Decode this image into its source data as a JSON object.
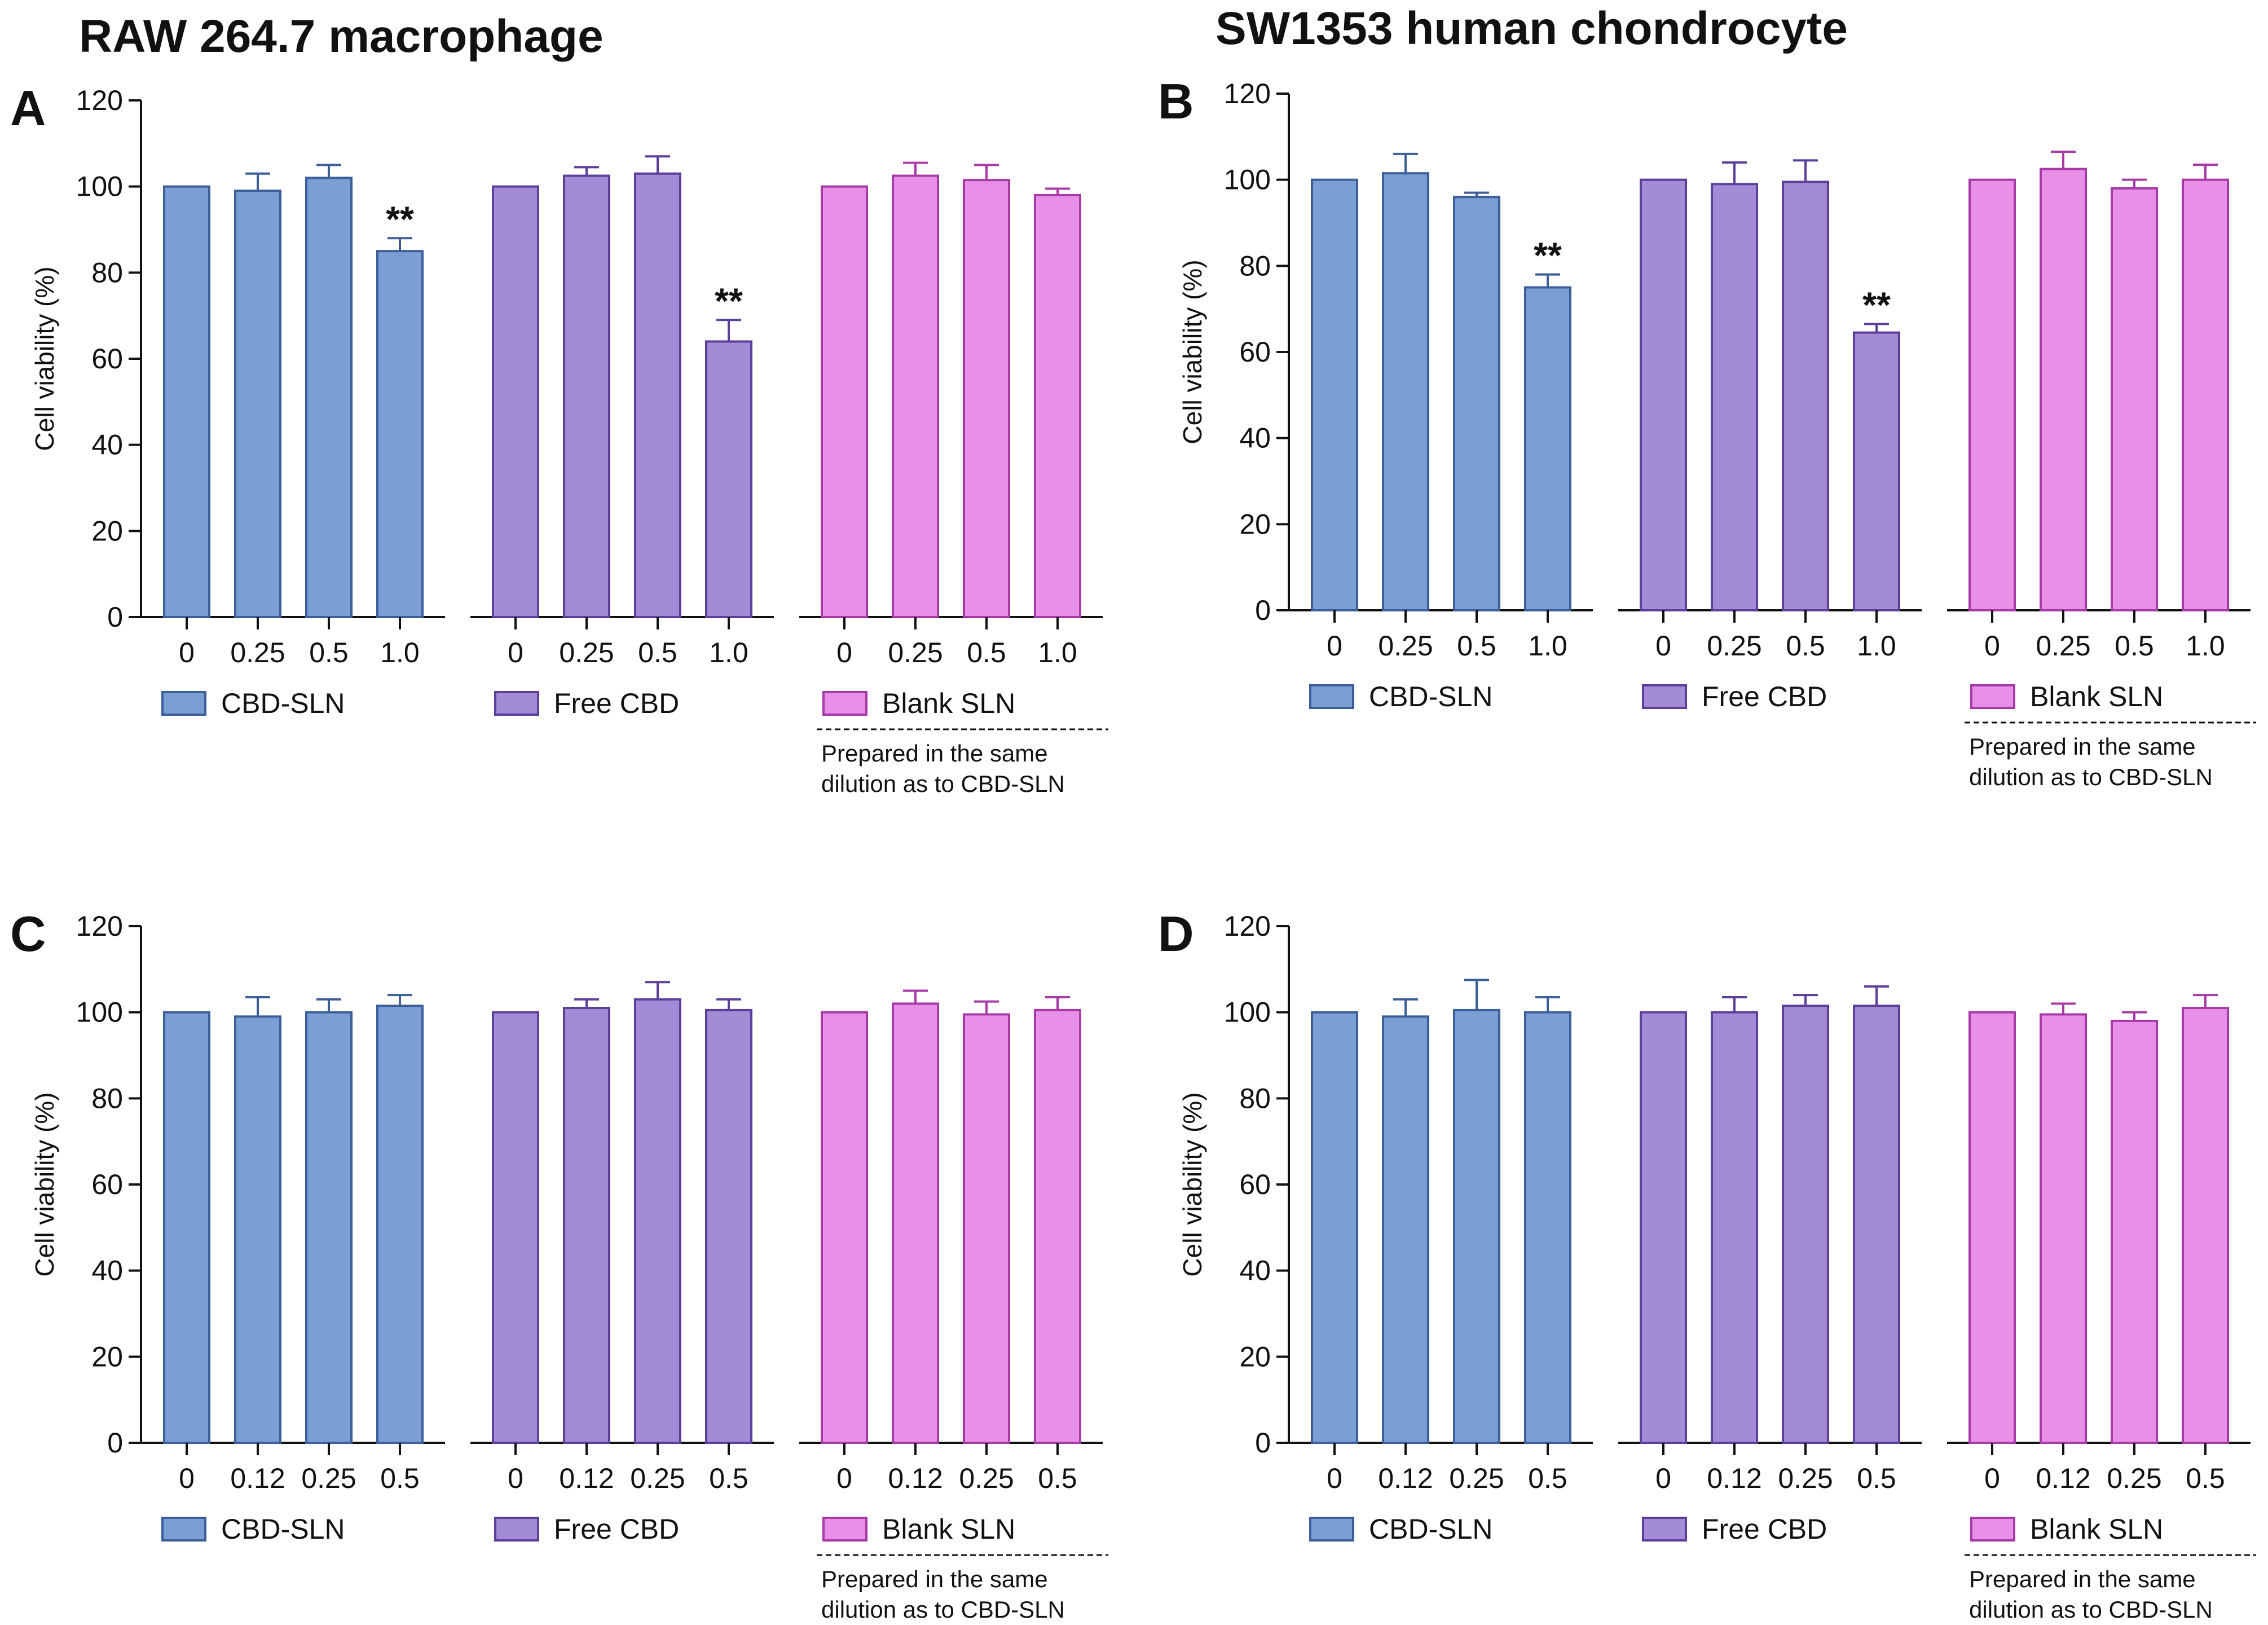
{
  "column_titles": [
    "RAW 264.7 macrophage",
    "SW1353 human chondrocyte"
  ],
  "colors": {
    "CBD-SLN": {
      "fill": "#7b9fd4",
      "stroke": "#3d5f99"
    },
    "Free CBD": {
      "fill": "#a38bd5",
      "stroke": "#5b3f9a"
    },
    "Blank SLN": {
      "fill": "#e890e8",
      "stroke": "#a83aa8"
    }
  },
  "chart_data": [
    {
      "panel": "A",
      "type": "bar",
      "ylabel": "Cell viability (%)",
      "ylim": [
        0,
        120
      ],
      "yticks": [
        0,
        20,
        40,
        60,
        80,
        100,
        120
      ],
      "legend": [
        "CBD-SLN",
        "Free CBD",
        "Blank SLN"
      ],
      "note": [
        "Prepared in the same",
        "dilution as to CBD-SLN"
      ],
      "groups": [
        {
          "name": "CBD-SLN",
          "categories": [
            "0",
            "0.25",
            "0.5",
            "1.0"
          ],
          "values": [
            100,
            99,
            102,
            85
          ],
          "errors": [
            0,
            4,
            3,
            3
          ],
          "sig": [
            "",
            "",
            "",
            "**"
          ]
        },
        {
          "name": "Free CBD",
          "categories": [
            "0",
            "0.25",
            "0.5",
            "1.0"
          ],
          "values": [
            100,
            102.5,
            103,
            64
          ],
          "errors": [
            0,
            2,
            4,
            5
          ],
          "sig": [
            "",
            "",
            "",
            "**"
          ]
        },
        {
          "name": "Blank SLN",
          "categories": [
            "0",
            "0.25",
            "0.5",
            "1.0"
          ],
          "values": [
            100,
            102.5,
            101.5,
            98
          ],
          "errors": [
            0,
            3,
            3.5,
            1.5
          ],
          "sig": [
            "",
            "",
            "",
            ""
          ]
        }
      ]
    },
    {
      "panel": "B",
      "type": "bar",
      "ylabel": "Cell viability (%)",
      "ylim": [
        0,
        120
      ],
      "yticks": [
        0,
        20,
        40,
        60,
        80,
        100,
        120
      ],
      "legend": [
        "CBD-SLN",
        "Free CBD",
        "Blank SLN"
      ],
      "note": [
        "Prepared in the same",
        "dilution as to CBD-SLN"
      ],
      "groups": [
        {
          "name": "CBD-SLN",
          "categories": [
            "0",
            "0.25",
            "0.5",
            "1.0"
          ],
          "values": [
            100,
            101.5,
            96,
            75
          ],
          "errors": [
            0,
            4.5,
            1,
            3
          ],
          "sig": [
            "",
            "",
            "",
            "**"
          ]
        },
        {
          "name": "Free CBD",
          "categories": [
            "0",
            "0.25",
            "0.5",
            "1.0"
          ],
          "values": [
            100,
            99,
            99.5,
            64.5
          ],
          "errors": [
            0,
            5,
            5,
            2
          ],
          "sig": [
            "",
            "",
            "",
            "**"
          ]
        },
        {
          "name": "Blank SLN",
          "categories": [
            "0",
            "0.25",
            "0.5",
            "1.0"
          ],
          "values": [
            100,
            102.5,
            98,
            100
          ],
          "errors": [
            0,
            4,
            2,
            3.5
          ],
          "sig": [
            "",
            "",
            "",
            ""
          ]
        }
      ]
    },
    {
      "panel": "C",
      "type": "bar",
      "ylabel": "Cell viability (%)",
      "ylim": [
        0,
        120
      ],
      "yticks": [
        0,
        20,
        40,
        60,
        80,
        100,
        120
      ],
      "legend": [
        "CBD-SLN",
        "Free CBD",
        "Blank SLN"
      ],
      "note": [
        "Prepared in the same",
        "dilution as to CBD-SLN"
      ],
      "groups": [
        {
          "name": "CBD-SLN",
          "categories": [
            "0",
            "0.12",
            "0.25",
            "0.5"
          ],
          "values": [
            100,
            99,
            100,
            101.5
          ],
          "errors": [
            0,
            4.5,
            3,
            2.5
          ],
          "sig": [
            "",
            "",
            "",
            ""
          ]
        },
        {
          "name": "Free CBD",
          "categories": [
            "0",
            "0.12",
            "0.25",
            "0.5"
          ],
          "values": [
            100,
            101,
            103,
            100.5
          ],
          "errors": [
            0,
            2,
            4,
            2.5
          ],
          "sig": [
            "",
            "",
            "",
            ""
          ]
        },
        {
          "name": "Blank SLN",
          "categories": [
            "0",
            "0.12",
            "0.25",
            "0.5"
          ],
          "values": [
            100,
            102,
            99.5,
            100.5
          ],
          "errors": [
            0,
            3,
            3,
            3
          ],
          "sig": [
            "",
            "",
            "",
            ""
          ]
        }
      ]
    },
    {
      "panel": "D",
      "type": "bar",
      "ylabel": "Cell viability (%)",
      "ylim": [
        0,
        120
      ],
      "yticks": [
        0,
        20,
        40,
        60,
        80,
        100,
        120
      ],
      "legend": [
        "CBD-SLN",
        "Free CBD",
        "Blank SLN"
      ],
      "note": [
        "Prepared in the same",
        "dilution as to CBD-SLN"
      ],
      "groups": [
        {
          "name": "CBD-SLN",
          "categories": [
            "0",
            "0.12",
            "0.25",
            "0.5"
          ],
          "values": [
            100,
            99,
            100.5,
            100
          ],
          "errors": [
            0,
            4,
            7,
            3.5
          ],
          "sig": [
            "",
            "",
            "",
            ""
          ]
        },
        {
          "name": "Free CBD",
          "categories": [
            "0",
            "0.12",
            "0.25",
            "0.5"
          ],
          "values": [
            100,
            100,
            101.5,
            101.5
          ],
          "errors": [
            0,
            3.5,
            2.5,
            4.5
          ],
          "sig": [
            "",
            "",
            "",
            ""
          ]
        },
        {
          "name": "Blank SLN",
          "categories": [
            "0",
            "0.12",
            "0.25",
            "0.5"
          ],
          "values": [
            100,
            99.5,
            98,
            101
          ],
          "errors": [
            0,
            2.5,
            2,
            3
          ],
          "sig": [
            "",
            "",
            "",
            ""
          ]
        }
      ]
    }
  ]
}
